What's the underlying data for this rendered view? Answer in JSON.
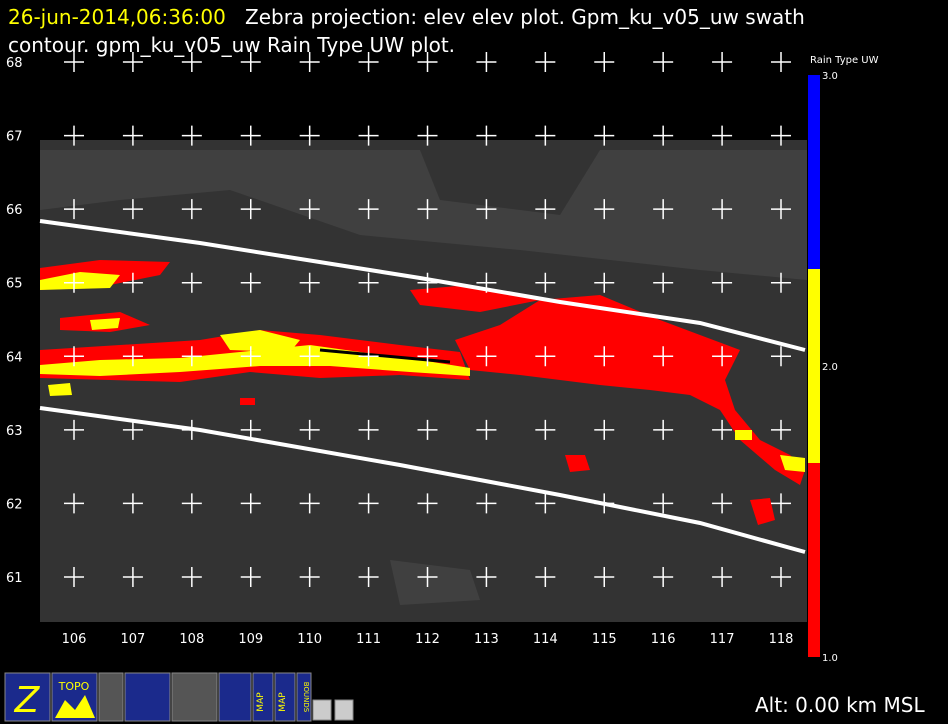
{
  "header": {
    "timestamp": "26-jun-2014,06:36:00",
    "line1": "Zebra projection: elev elev  plot.  Gpm_ku_v05_uw swath",
    "line2": "contour.  gpm_ku_v05_uw Rain Type UW  plot."
  },
  "axes": {
    "xticks": [
      106,
      107,
      108,
      109,
      110,
      111,
      112,
      113,
      114,
      115,
      116,
      117,
      118
    ],
    "yticks": [
      61,
      62,
      63,
      64,
      65,
      66,
      67,
      68
    ]
  },
  "colorbar": {
    "title": "Rain Type UW",
    "ticks": [
      {
        "value": 1,
        "label": "1.0"
      },
      {
        "value": 2,
        "label": "2.0"
      },
      {
        "value": 3,
        "label": "3.0"
      }
    ],
    "colors": [
      "#ff0000",
      "#ffff00",
      "#0000ff"
    ]
  },
  "toolbar": {
    "icons": [
      "Z",
      "TOPO",
      "MAP",
      "MAP",
      "BOUNDS"
    ]
  },
  "status": {
    "altitude": "Alt: 0.00 km MSL"
  }
}
